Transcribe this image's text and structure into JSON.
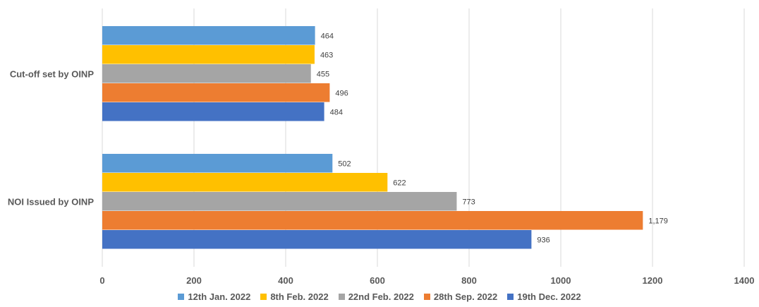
{
  "chart_data": {
    "type": "bar",
    "orientation": "horizontal",
    "categories": [
      "Cut-off set by OINP",
      "NOI Issued by OINP"
    ],
    "series": [
      {
        "name": "12th Jan. 2022",
        "color": "#5B9BD5",
        "values": [
          464,
          502
        ],
        "labels": [
          "464",
          "502"
        ]
      },
      {
        "name": "8th Feb. 2022",
        "color": "#FFC000",
        "values": [
          463,
          622
        ],
        "labels": [
          "463",
          "622"
        ]
      },
      {
        "name": "22nd Feb. 2022",
        "color": "#A5A5A5",
        "values": [
          455,
          773
        ],
        "labels": [
          "455",
          "773"
        ]
      },
      {
        "name": "28th Sep. 2022",
        "color": "#ED7D31",
        "values": [
          496,
          1179
        ],
        "labels": [
          "496",
          "1,179"
        ]
      },
      {
        "name": "19th Dec. 2022",
        "color": "#4472C4",
        "values": [
          484,
          936
        ],
        "labels": [
          "484",
          "936"
        ]
      }
    ],
    "xticks": [
      "0",
      "200",
      "400",
      "600",
      "800",
      "1000",
      "1200",
      "1400"
    ],
    "xlim": [
      0,
      1400
    ],
    "grid": true,
    "legend_position": "bottom"
  }
}
